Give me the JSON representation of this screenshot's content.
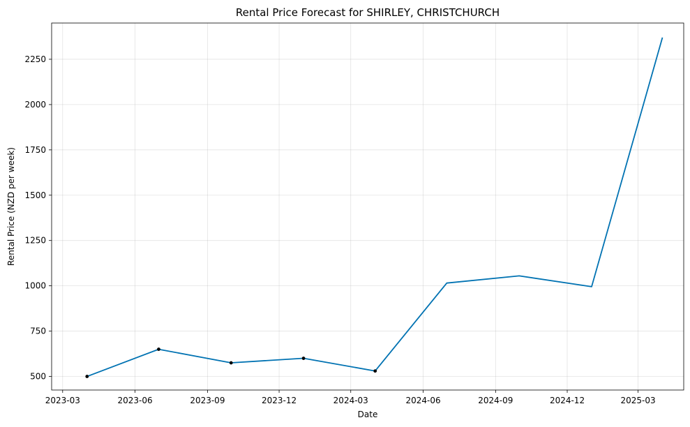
{
  "chart_data": {
    "type": "line",
    "title": "Rental Price Forecast for SHIRLEY, CHRISTCHURCH",
    "xlabel": "Date",
    "ylabel": "Rental Price (NZD per week)",
    "x_ticks": [
      "2023-03",
      "2023-06",
      "2023-09",
      "2023-12",
      "2024-03",
      "2024-06",
      "2024-09",
      "2024-12",
      "2025-03"
    ],
    "y_ticks": [
      500,
      750,
      1000,
      1250,
      1500,
      1750,
      2000,
      2250
    ],
    "xlim": [
      "2023-02-15",
      "2025-04-28"
    ],
    "ylim": [
      425,
      2450
    ],
    "grid": true,
    "series": [
      {
        "color": "#0072b2",
        "points": [
          {
            "date": "2023-04-01",
            "value": 500
          },
          {
            "date": "2023-07-01",
            "value": 650
          },
          {
            "date": "2023-10-01",
            "value": 575
          },
          {
            "date": "2024-01-01",
            "value": 600
          },
          {
            "date": "2024-04-01",
            "value": 530
          },
          {
            "date": "2024-07-01",
            "value": 1015
          },
          {
            "date": "2024-10-01",
            "value": 1055
          },
          {
            "date": "2025-01-01",
            "value": 995
          },
          {
            "date": "2025-04-01",
            "value": 2370
          }
        ]
      }
    ],
    "observed": {
      "color": "#000000",
      "points": [
        {
          "date": "2023-04-01",
          "value": 500
        },
        {
          "date": "2023-07-01",
          "value": 650
        },
        {
          "date": "2023-10-01",
          "value": 575
        },
        {
          "date": "2024-01-01",
          "value": 600
        },
        {
          "date": "2024-04-01",
          "value": 530
        }
      ]
    }
  }
}
